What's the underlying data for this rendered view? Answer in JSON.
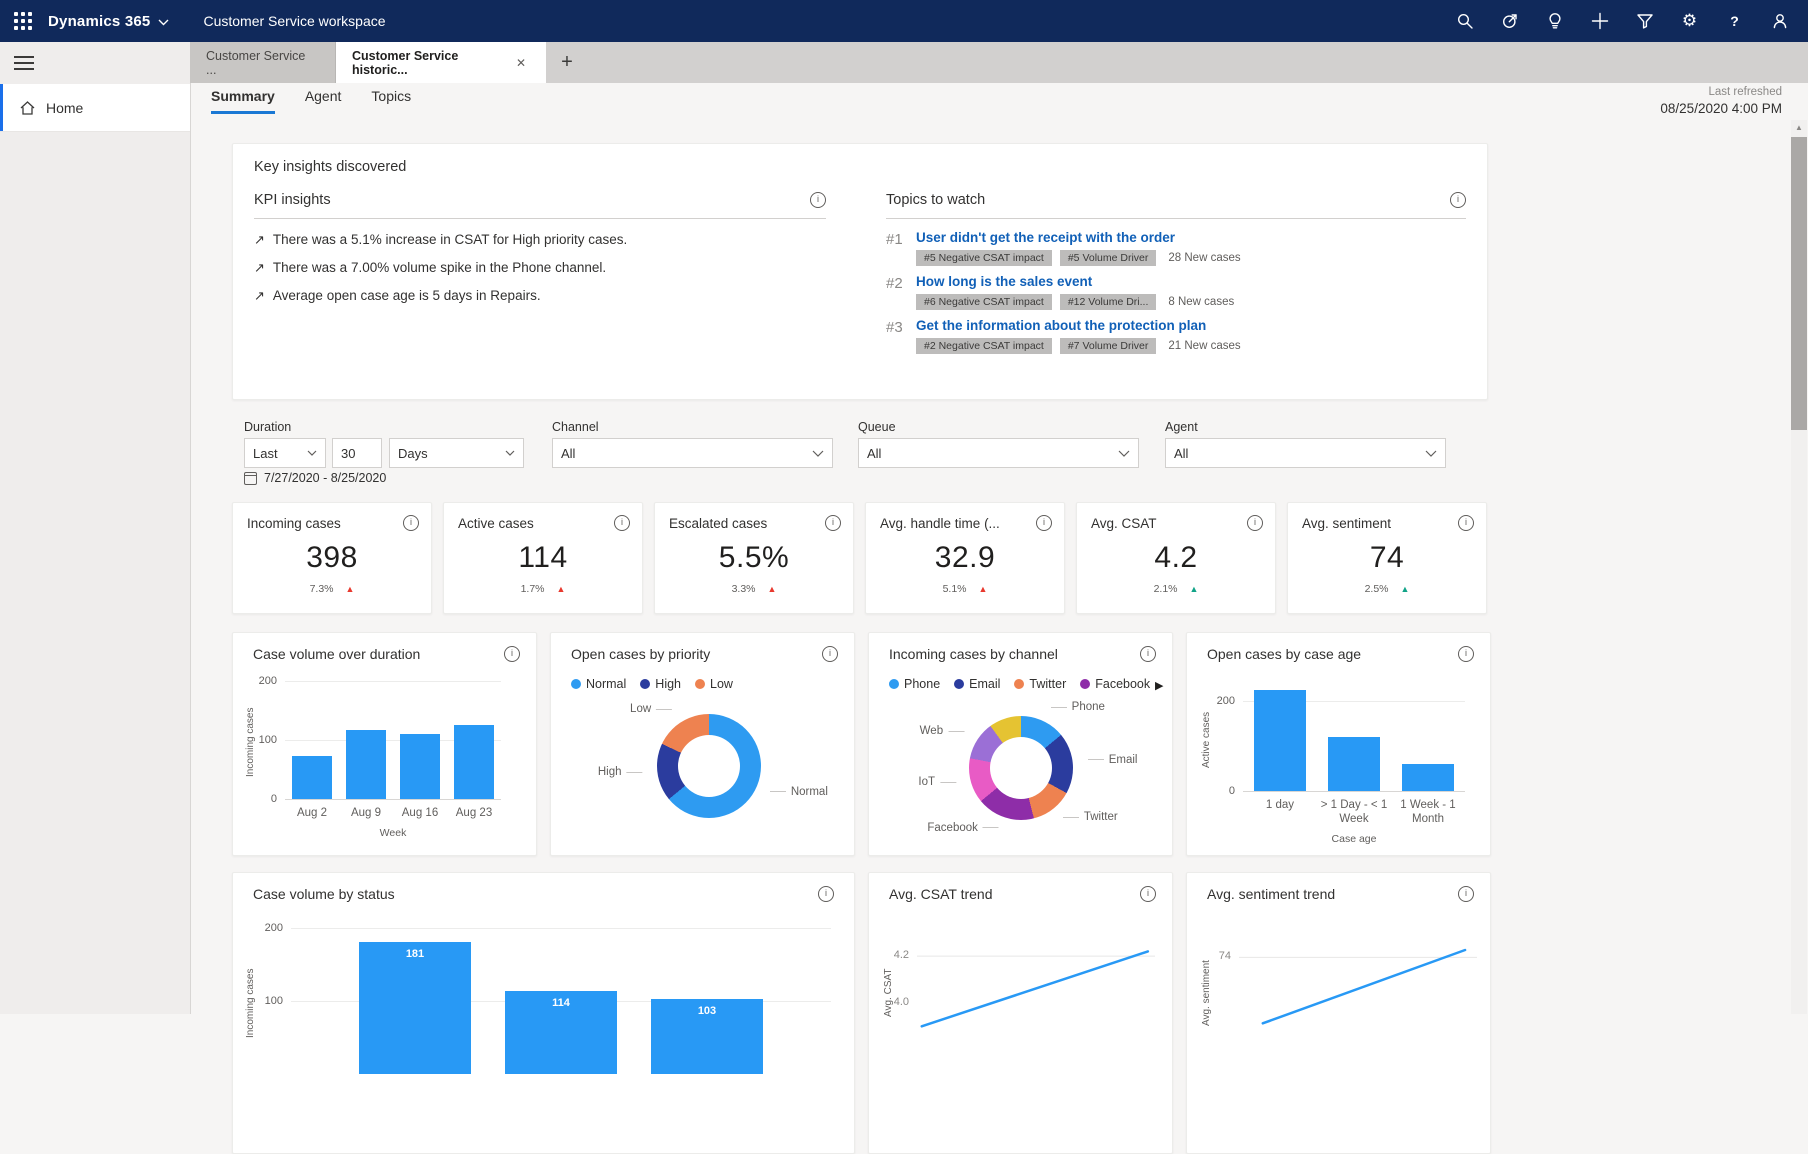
{
  "topbar": {
    "brand": "Dynamics 365",
    "app": "Customer Service workspace"
  },
  "tabs": {
    "inactive": "Customer Service ...",
    "active": "Customer Service historic..."
  },
  "sidebar": {
    "home": "Home"
  },
  "subtabs": {
    "summary": "Summary",
    "agent": "Agent",
    "topics": "Topics"
  },
  "refreshed": {
    "label": "Last refreshed",
    "value": "08/25/2020 4:00 PM"
  },
  "insights": {
    "title": "Key insights discovered",
    "kpi": {
      "title": "KPI insights",
      "items": [
        "There was a 5.1% increase in CSAT for High priority cases.",
        "There was a 7.00% volume spike in the Phone channel.",
        "Average open case age is 5 days in Repairs."
      ]
    },
    "topics": {
      "title": "Topics to watch",
      "items": [
        {
          "rank": "#1",
          "title": "User didn't get the receipt with the order",
          "badges": [
            "#5 Negative CSAT impact",
            "#5 Volume Driver"
          ],
          "new_cases": "28 New cases"
        },
        {
          "rank": "#2",
          "title": "How long is the sales event",
          "badges": [
            "#6 Negative CSAT impact",
            "#12 Volume Dri..."
          ],
          "new_cases": "8 New cases"
        },
        {
          "rank": "#3",
          "title": "Get the information about the protection plan",
          "badges": [
            "#2 Negative CSAT impact",
            "#7 Volume Driver"
          ],
          "new_cases": "21 New cases"
        }
      ]
    }
  },
  "filters": {
    "duration": {
      "label": "Duration",
      "preset": "Last",
      "value": "30",
      "unit": "Days",
      "date_range": "7/27/2020 - 8/25/2020"
    },
    "channel": {
      "label": "Channel",
      "value": "All"
    },
    "queue": {
      "label": "Queue",
      "value": "All"
    },
    "agent": {
      "label": "Agent",
      "value": "All"
    }
  },
  "kpis": [
    {
      "title": "Incoming cases",
      "value": "398",
      "delta": "7.3%",
      "trend": "up",
      "trend_color": "#e8392e"
    },
    {
      "title": "Active cases",
      "value": "114",
      "delta": "1.7%",
      "trend": "up",
      "trend_color": "#e8392e"
    },
    {
      "title": "Escalated cases",
      "value": "5.5%",
      "delta": "3.3%",
      "trend": "up",
      "trend_color": "#e8392e"
    },
    {
      "title": "Avg. handle time (...",
      "value": "32.9",
      "delta": "5.1%",
      "trend": "up",
      "trend_color": "#e8392e"
    },
    {
      "title": "Avg. CSAT",
      "value": "4.2",
      "delta": "2.1%",
      "trend": "up",
      "trend_color": "#11a387"
    },
    {
      "title": "Avg. sentiment",
      "value": "74",
      "delta": "2.5%",
      "trend": "up",
      "trend_color": "#11a387"
    }
  ],
  "chart_data": [
    {
      "id": "case_volume_over_duration",
      "type": "bar",
      "title": "Case volume over duration",
      "categories": [
        "Aug 2",
        "Aug 9",
        "Aug 16",
        "Aug 23"
      ],
      "values": [
        73,
        117,
        110,
        125
      ],
      "ylabel": "Incoming cases",
      "xlabel": "Week",
      "yticks": [
        0,
        100,
        200
      ],
      "ymax": 200,
      "bar_color": "#2899f5"
    },
    {
      "id": "open_cases_by_priority",
      "type": "donut",
      "title": "Open cases by priority",
      "legend": [
        "Normal",
        "High",
        "Low"
      ],
      "slices": [
        {
          "label": "Normal",
          "value": 64,
          "color": "#2e9bf1"
        },
        {
          "label": "High",
          "value": 18,
          "color": "#2b3c9e"
        },
        {
          "label": "Low",
          "value": 18,
          "color": "#ee8250"
        }
      ]
    },
    {
      "id": "incoming_cases_by_channel",
      "type": "donut",
      "title": "Incoming cases by channel",
      "legend": [
        "Phone",
        "Email",
        "Twitter",
        "Facebook"
      ],
      "legend_overflow": "▶",
      "slices": [
        {
          "label": "Phone",
          "value": 14,
          "color": "#2e9bf1"
        },
        {
          "label": "Email",
          "value": 19,
          "color": "#2b3c9e"
        },
        {
          "label": "Twitter",
          "value": 13,
          "color": "#ee8250"
        },
        {
          "label": "Facebook",
          "value": 18,
          "color": "#8e2da8"
        },
        {
          "label": "IoT",
          "value": 14,
          "color": "#e85bc5"
        },
        {
          "label": "Web",
          "value": 12,
          "color": "#9b6fd6"
        },
        {
          "label": "",
          "value": 10,
          "color": "#e5c332"
        }
      ]
    },
    {
      "id": "open_cases_by_case_age",
      "type": "bar",
      "title": "Open cases by case age",
      "categories": [
        "1 day",
        "> 1 Day - < 1 Week",
        "1 Week - 1 Month"
      ],
      "values": [
        225,
        120,
        60
      ],
      "ylabel": "Active cases",
      "xlabel": "Case age",
      "yticks": [
        0,
        200
      ],
      "ymax": 260,
      "bar_color": "#2899f5"
    },
    {
      "id": "case_volume_by_status",
      "type": "bar",
      "title": "Case volume by status",
      "categories": [
        "",
        "",
        ""
      ],
      "values": [
        181,
        114,
        103
      ],
      "show_values": true,
      "ylabel": "Incoming cases",
      "xlabel": "",
      "yticks": [
        100,
        200
      ],
      "ymax": 200,
      "bar_color": "#2899f5"
    },
    {
      "id": "avg_csat_trend",
      "type": "line",
      "title": "Avg. CSAT trend",
      "ylabel": "Avg. CSAT",
      "ymin": 3.85,
      "ymax": 4.32,
      "yticks": [
        {
          "label": "4.2",
          "value": 4.2,
          "grid": true
        },
        {
          "label": "4.0",
          "value": 4.0,
          "grid": false
        }
      ],
      "points": [
        {
          "x": 0.02,
          "v": 3.9
        },
        {
          "x": 0.97,
          "v": 4.22
        }
      ],
      "color": "#2899f5"
    },
    {
      "id": "avg_sentiment_trend",
      "type": "line",
      "title": "Avg. sentiment trend",
      "ylabel": "Avg. sentiment",
      "ymin": 68.5,
      "ymax": 76,
      "yticks": [
        {
          "label": "74",
          "value": 74,
          "grid": true
        }
      ],
      "points": [
        {
          "x": 0.1,
          "v": 69.5
        },
        {
          "x": 0.95,
          "v": 74.5
        }
      ],
      "color": "#2899f5"
    }
  ],
  "colors": {
    "topbar": "#10295b",
    "accent": "#1a78d4",
    "bar": "#2899f5",
    "negative": "#e8392e",
    "positive": "#11a387"
  }
}
